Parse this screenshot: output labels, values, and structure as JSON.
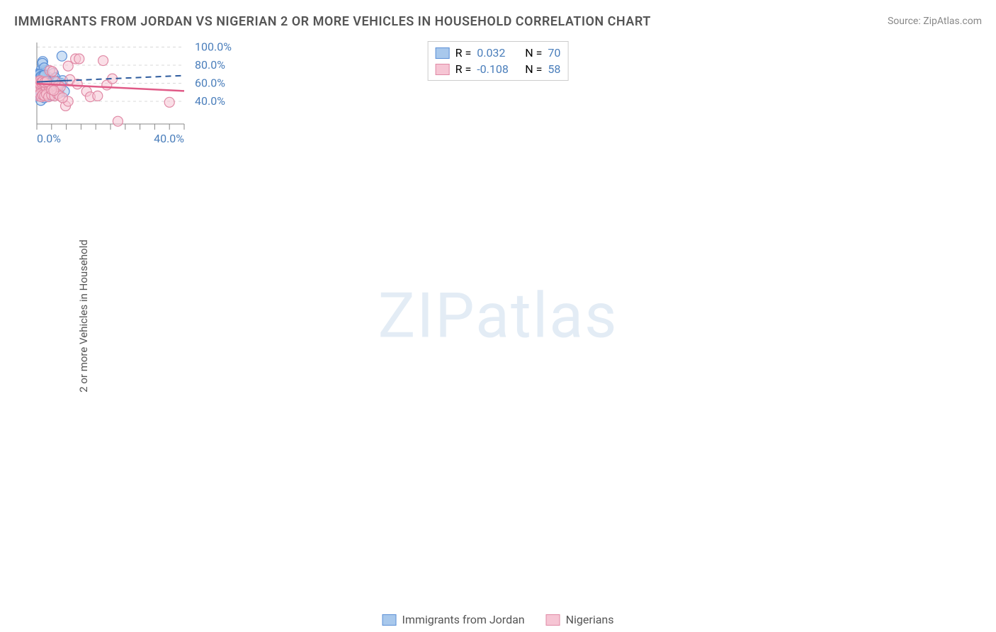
{
  "title": "IMMIGRANTS FROM JORDAN VS NIGERIAN 2 OR MORE VEHICLES IN HOUSEHOLD CORRELATION CHART",
  "source": "Source: ZipAtlas.com",
  "watermark": "ZIPatlas",
  "ylabel": "2 or more Vehicles in Household",
  "chart": {
    "type": "scatter",
    "background_color": "#ffffff",
    "grid_color": "#d8d8d8",
    "grid_dash": "4,4",
    "axis_color": "#888888",
    "xlim": [
      0,
      40
    ],
    "ylim": [
      15,
      105
    ],
    "x_ticks": [
      0,
      4,
      8,
      12,
      16,
      20,
      24,
      28,
      32,
      36,
      40
    ],
    "x_tick_labels": {
      "0": "0.0%",
      "40": "40.0%"
    },
    "y_ticks": [
      40,
      60,
      80,
      100
    ],
    "y_tick_labels": {
      "40": "40.0%",
      "60": "60.0%",
      "80": "80.0%",
      "100": "100.0%"
    },
    "tick_label_color": "#4a7ebb",
    "tick_label_fontsize": 16,
    "marker_radius": 7,
    "marker_stroke_width": 1.2,
    "series": [
      {
        "name": "Immigrants from Jordan",
        "fill_color": "#a8c8ec",
        "stroke_color": "#5b8fd6",
        "fill_opacity": 0.55,
        "R": "0.032",
        "N": "70",
        "trend": {
          "x1": 0,
          "y1": 61.5,
          "x2": 40,
          "y2": 68.5,
          "solid_until_x": 8,
          "color": "#2e5c9e",
          "width": 2
        },
        "points": [
          [
            0.3,
            62
          ],
          [
            0.4,
            58
          ],
          [
            0.5,
            65
          ],
          [
            0.6,
            60
          ],
          [
            0.7,
            63
          ],
          [
            0.8,
            55
          ],
          [
            0.9,
            68
          ],
          [
            1.0,
            66
          ],
          [
            1.1,
            61
          ],
          [
            1.2,
            64
          ],
          [
            1.3,
            59
          ],
          [
            1.4,
            67
          ],
          [
            1.5,
            62
          ],
          [
            1.6,
            63
          ],
          [
            1.7,
            58
          ],
          [
            1.8,
            70
          ],
          [
            1.9,
            65
          ],
          [
            2.0,
            61
          ],
          [
            2.1,
            64
          ],
          [
            2.2,
            60
          ],
          [
            2.3,
            68
          ],
          [
            2.4,
            62
          ],
          [
            2.5,
            59
          ],
          [
            2.6,
            66
          ],
          [
            2.7,
            63
          ],
          [
            2.8,
            61
          ],
          [
            3.0,
            67
          ],
          [
            3.2,
            64
          ],
          [
            3.5,
            60
          ],
          [
            1.0,
            72
          ],
          [
            1.2,
            75
          ],
          [
            1.6,
            84
          ],
          [
            1.5,
            82
          ],
          [
            2.0,
            77
          ],
          [
            4.5,
            71
          ],
          [
            5.0,
            66
          ],
          [
            5.5,
            62
          ],
          [
            6.0,
            49
          ],
          [
            6.5,
            60
          ],
          [
            7.0,
            63
          ],
          [
            0.5,
            48
          ],
          [
            0.8,
            46
          ],
          [
            1.0,
            50
          ],
          [
            1.3,
            47
          ],
          [
            1.8,
            52
          ],
          [
            2.2,
            49
          ],
          [
            2.8,
            53
          ],
          [
            3.2,
            50
          ],
          [
            3.8,
            46
          ],
          [
            1.0,
            56
          ],
          [
            1.4,
            55
          ],
          [
            1.8,
            57
          ],
          [
            2.3,
            56
          ],
          [
            2.7,
            54
          ],
          [
            3.1,
            57
          ],
          [
            3.6,
            55
          ],
          [
            4.5,
            56
          ],
          [
            5.0,
            56
          ],
          [
            5.5,
            56
          ],
          [
            1.1,
            41
          ],
          [
            2.0,
            44
          ],
          [
            0.4,
            70
          ],
          [
            0.6,
            69
          ],
          [
            0.8,
            70
          ],
          [
            6.8,
            90
          ],
          [
            7.5,
            51
          ],
          [
            1.0,
            67
          ],
          [
            1.3,
            68
          ],
          [
            1.7,
            68
          ],
          [
            2.1,
            69
          ]
        ]
      },
      {
        "name": "Nigerians",
        "fill_color": "#f6c5d4",
        "stroke_color": "#e089a5",
        "fill_opacity": 0.55,
        "R": "-0.108",
        "N": "58",
        "trend": {
          "x1": 0,
          "y1": 59.5,
          "x2": 40,
          "y2": 51.5,
          "solid_until_x": 40,
          "color": "#e05a87",
          "width": 2.5
        },
        "points": [
          [
            0.3,
            58
          ],
          [
            0.5,
            56
          ],
          [
            0.7,
            55
          ],
          [
            0.9,
            59
          ],
          [
            1.1,
            57
          ],
          [
            1.3,
            54
          ],
          [
            1.5,
            58
          ],
          [
            1.7,
            56
          ],
          [
            2.0,
            59
          ],
          [
            2.3,
            57
          ],
          [
            2.6,
            55
          ],
          [
            3.0,
            58
          ],
          [
            3.4,
            56
          ],
          [
            3.8,
            57
          ],
          [
            4.3,
            56
          ],
          [
            4.9,
            57
          ],
          [
            5.4,
            56
          ],
          [
            5.9,
            57
          ],
          [
            6.4,
            56
          ],
          [
            0.5,
            46
          ],
          [
            0.8,
            48
          ],
          [
            1.2,
            45
          ],
          [
            1.6,
            47
          ],
          [
            2.1,
            46
          ],
          [
            2.6,
            48
          ],
          [
            3.2,
            45
          ],
          [
            4.0,
            47
          ],
          [
            4.8,
            46
          ],
          [
            5.6,
            48
          ],
          [
            6.2,
            46
          ],
          [
            3.5,
            74
          ],
          [
            4.2,
            73
          ],
          [
            5.0,
            62
          ],
          [
            8.5,
            79
          ],
          [
            9.0,
            64
          ],
          [
            10.5,
            87
          ],
          [
            11.5,
            87
          ],
          [
            18.0,
            85
          ],
          [
            13.5,
            51
          ],
          [
            14.5,
            45
          ],
          [
            16.5,
            46
          ],
          [
            19.0,
            58
          ],
          [
            20.5,
            65
          ],
          [
            36.0,
            39
          ],
          [
            7.8,
            35
          ],
          [
            8.5,
            40
          ],
          [
            4.0,
            53
          ],
          [
            4.6,
            52
          ],
          [
            7.0,
            44
          ],
          [
            0.4,
            62
          ],
          [
            0.6,
            60
          ],
          [
            0.9,
            63
          ],
          [
            1.2,
            61
          ],
          [
            1.6,
            62
          ],
          [
            2.1,
            61
          ],
          [
            2.7,
            62
          ],
          [
            22.0,
            18
          ],
          [
            11.0,
            59
          ]
        ]
      }
    ]
  },
  "legend_top": {
    "r_label": "R =",
    "n_label": "N =",
    "text_color": "#555555",
    "value_color": "#4a7ebb"
  },
  "legend_bottom": {
    "items": [
      "Immigrants from Jordan",
      "Nigerians"
    ]
  }
}
